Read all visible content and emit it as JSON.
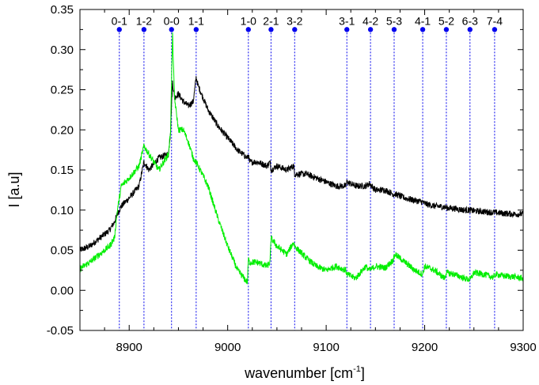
{
  "chart_data": {
    "type": "line",
    "xlabel": "wavenumber [cm",
    "xlabel_sup": "-1",
    "xlabel_end": "]",
    "ylabel": "I [a.u]",
    "xlim": [
      8850,
      9300
    ],
    "ylim": [
      -0.05,
      0.35
    ],
    "x_ticks": [
      8900,
      9000,
      9100,
      9200,
      9300
    ],
    "y_ticks": [
      -0.05,
      0.0,
      0.05,
      0.1,
      0.15,
      0.2,
      0.25,
      0.3,
      0.35
    ],
    "x_tick_labels": [
      "8900",
      "9000",
      "9100",
      "9200",
      "9300"
    ],
    "y_tick_labels": [
      "-0.05",
      "0.00",
      "0.05",
      "0.10",
      "0.15",
      "0.20",
      "0.25",
      "0.30",
      "0.35"
    ],
    "grid": false,
    "colors": {
      "black_series": "#000000",
      "green_series": "#00ee00",
      "markers": "#0000ee"
    },
    "series": [
      {
        "color": "#000000",
        "x": [
          8850,
          8860,
          8870,
          8880,
          8885,
          8888,
          8892,
          8900,
          8910,
          8915,
          8920,
          8930,
          8940,
          8942,
          8944,
          8946,
          8950,
          8955,
          8960,
          8965,
          8968,
          8970,
          8975,
          8980,
          8990,
          9000,
          9010,
          9020,
          9021,
          9022,
          9030,
          9040,
          9043,
          9044,
          9050,
          9060,
          9067,
          9068,
          9080,
          9090,
          9100,
          9110,
          9120,
          9121,
          9130,
          9140,
          9144,
          9150,
          9160,
          9168,
          9170,
          9180,
          9190,
          9198,
          9200,
          9210,
          9220,
          9222,
          9230,
          9240,
          9246,
          9250,
          9260,
          9270,
          9272,
          9280,
          9290,
          9300
        ],
        "y": [
          0.05,
          0.055,
          0.065,
          0.075,
          0.085,
          0.095,
          0.105,
          0.115,
          0.13,
          0.16,
          0.15,
          0.165,
          0.17,
          0.2,
          0.26,
          0.24,
          0.245,
          0.235,
          0.23,
          0.235,
          0.265,
          0.255,
          0.24,
          0.225,
          0.205,
          0.19,
          0.175,
          0.165,
          0.17,
          0.16,
          0.16,
          0.155,
          0.16,
          0.15,
          0.155,
          0.15,
          0.155,
          0.145,
          0.145,
          0.14,
          0.135,
          0.13,
          0.13,
          0.135,
          0.13,
          0.13,
          0.133,
          0.125,
          0.125,
          0.12,
          0.12,
          0.115,
          0.112,
          0.11,
          0.108,
          0.105,
          0.104,
          0.103,
          0.102,
          0.1,
          0.1,
          0.099,
          0.098,
          0.097,
          0.097,
          0.096,
          0.095,
          0.095
        ]
      },
      {
        "color": "#00ee00",
        "x": [
          8850,
          8860,
          8870,
          8880,
          8885,
          8888,
          8892,
          8900,
          8910,
          8915,
          8920,
          8930,
          8940,
          8942,
          8944,
          8946,
          8950,
          8955,
          8960,
          8965,
          8970,
          8980,
          8990,
          9000,
          9010,
          9020,
          9021,
          9022,
          9030,
          9040,
          9043,
          9044,
          9050,
          9060,
          9067,
          9068,
          9080,
          9090,
          9100,
          9110,
          9120,
          9121,
          9130,
          9140,
          9144,
          9150,
          9160,
          9168,
          9170,
          9180,
          9190,
          9198,
          9200,
          9210,
          9220,
          9222,
          9230,
          9240,
          9246,
          9250,
          9260,
          9270,
          9272,
          9280,
          9290,
          9300
        ],
        "y": [
          0.027,
          0.035,
          0.045,
          0.055,
          0.065,
          0.1,
          0.13,
          0.14,
          0.155,
          0.18,
          0.17,
          0.15,
          0.17,
          0.2,
          0.32,
          0.24,
          0.2,
          0.2,
          0.185,
          0.165,
          0.155,
          0.13,
          0.09,
          0.055,
          0.025,
          0.01,
          0.04,
          0.035,
          0.035,
          0.03,
          0.035,
          0.065,
          0.055,
          0.045,
          0.06,
          0.055,
          0.04,
          0.03,
          0.025,
          0.03,
          0.025,
          0.02,
          0.015,
          0.03,
          0.025,
          0.03,
          0.028,
          0.038,
          0.045,
          0.035,
          0.025,
          0.02,
          0.03,
          0.025,
          0.015,
          0.022,
          0.02,
          0.015,
          0.013,
          0.022,
          0.02,
          0.016,
          0.02,
          0.018,
          0.017,
          0.015
        ]
      }
    ],
    "markers": [
      {
        "label": "0-1",
        "x": 8890
      },
      {
        "label": "1-2",
        "x": 8915
      },
      {
        "label": "0-0",
        "x": 8943
      },
      {
        "label": "1-1",
        "x": 8968
      },
      {
        "label": "1-0",
        "x": 9021
      },
      {
        "label": "2-1",
        "x": 9044
      },
      {
        "label": "3-2",
        "x": 9068
      },
      {
        "label": "3-1",
        "x": 9121
      },
      {
        "label": "4-2",
        "x": 9145
      },
      {
        "label": "5-3",
        "x": 9169
      },
      {
        "label": "4-1",
        "x": 9198
      },
      {
        "label": "5-2",
        "x": 9222
      },
      {
        "label": "6-3",
        "x": 9246
      },
      {
        "label": "7-4",
        "x": 9271
      }
    ],
    "marker_y": 0.325
  }
}
